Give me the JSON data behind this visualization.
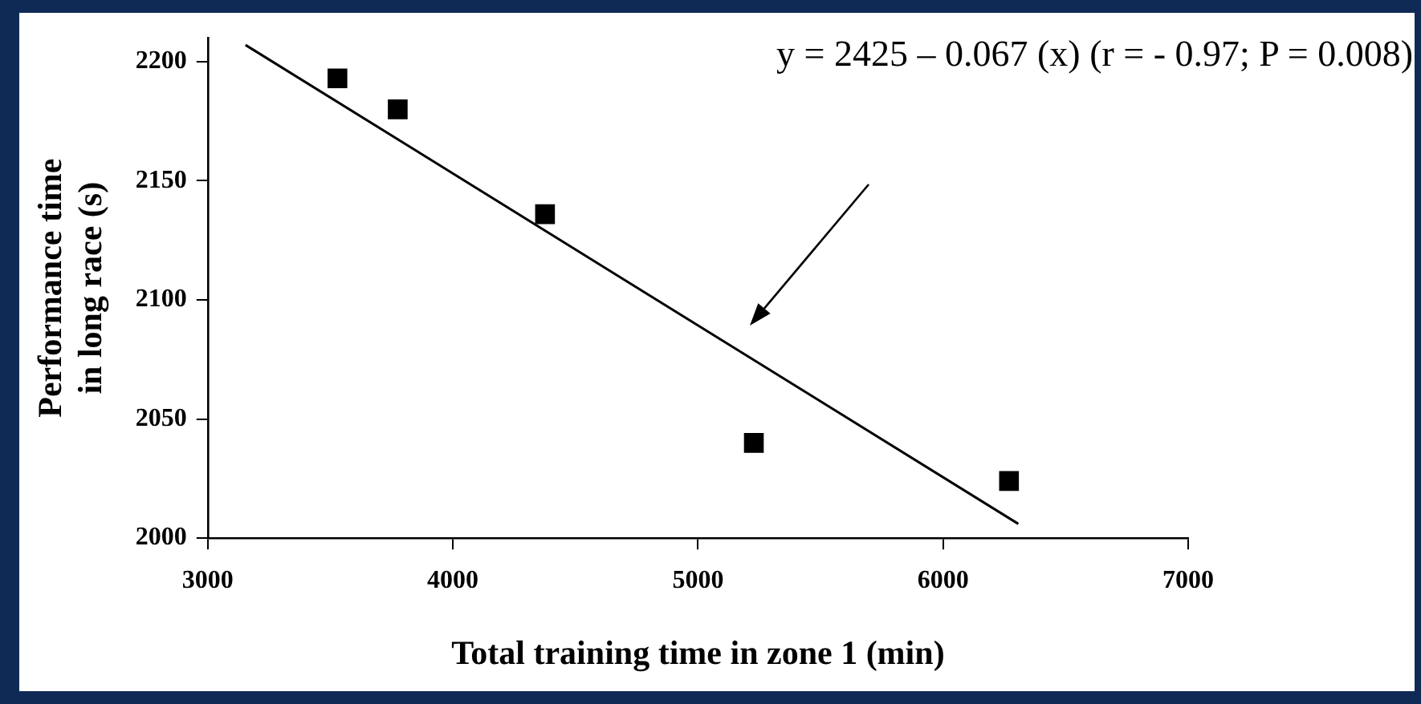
{
  "chart_data": {
    "type": "scatter",
    "xlabel": "Total training time in zone 1 (min)",
    "ylabel": "Performance time in long race (s)",
    "x": [
      3529,
      3775,
      4376,
      5228,
      6269
    ],
    "series": [
      {
        "color": "#000000",
        "marker": "square",
        "values": [
          2193,
          2180,
          2136,
          2040,
          2024
        ]
      },
      {
        "type": "line",
        "color": "#000000",
        "marker": "none",
        "x": [
          3154,
          6307
        ],
        "values": [
          2207,
          2006
        ]
      }
    ],
    "xlim": [
      3000,
      7000
    ],
    "xticks": [
      3000,
      4000,
      5000,
      6000,
      7000
    ],
    "ylim": [
      2000,
      2210
    ],
    "yticks": [
      2000,
      2050,
      2100,
      2150,
      2200
    ],
    "annotations": [
      "y = 2425 – 0.067 (x) (r = - 0.97; P = 0.008)"
    ],
    "grid": false,
    "legend": false
  }
}
